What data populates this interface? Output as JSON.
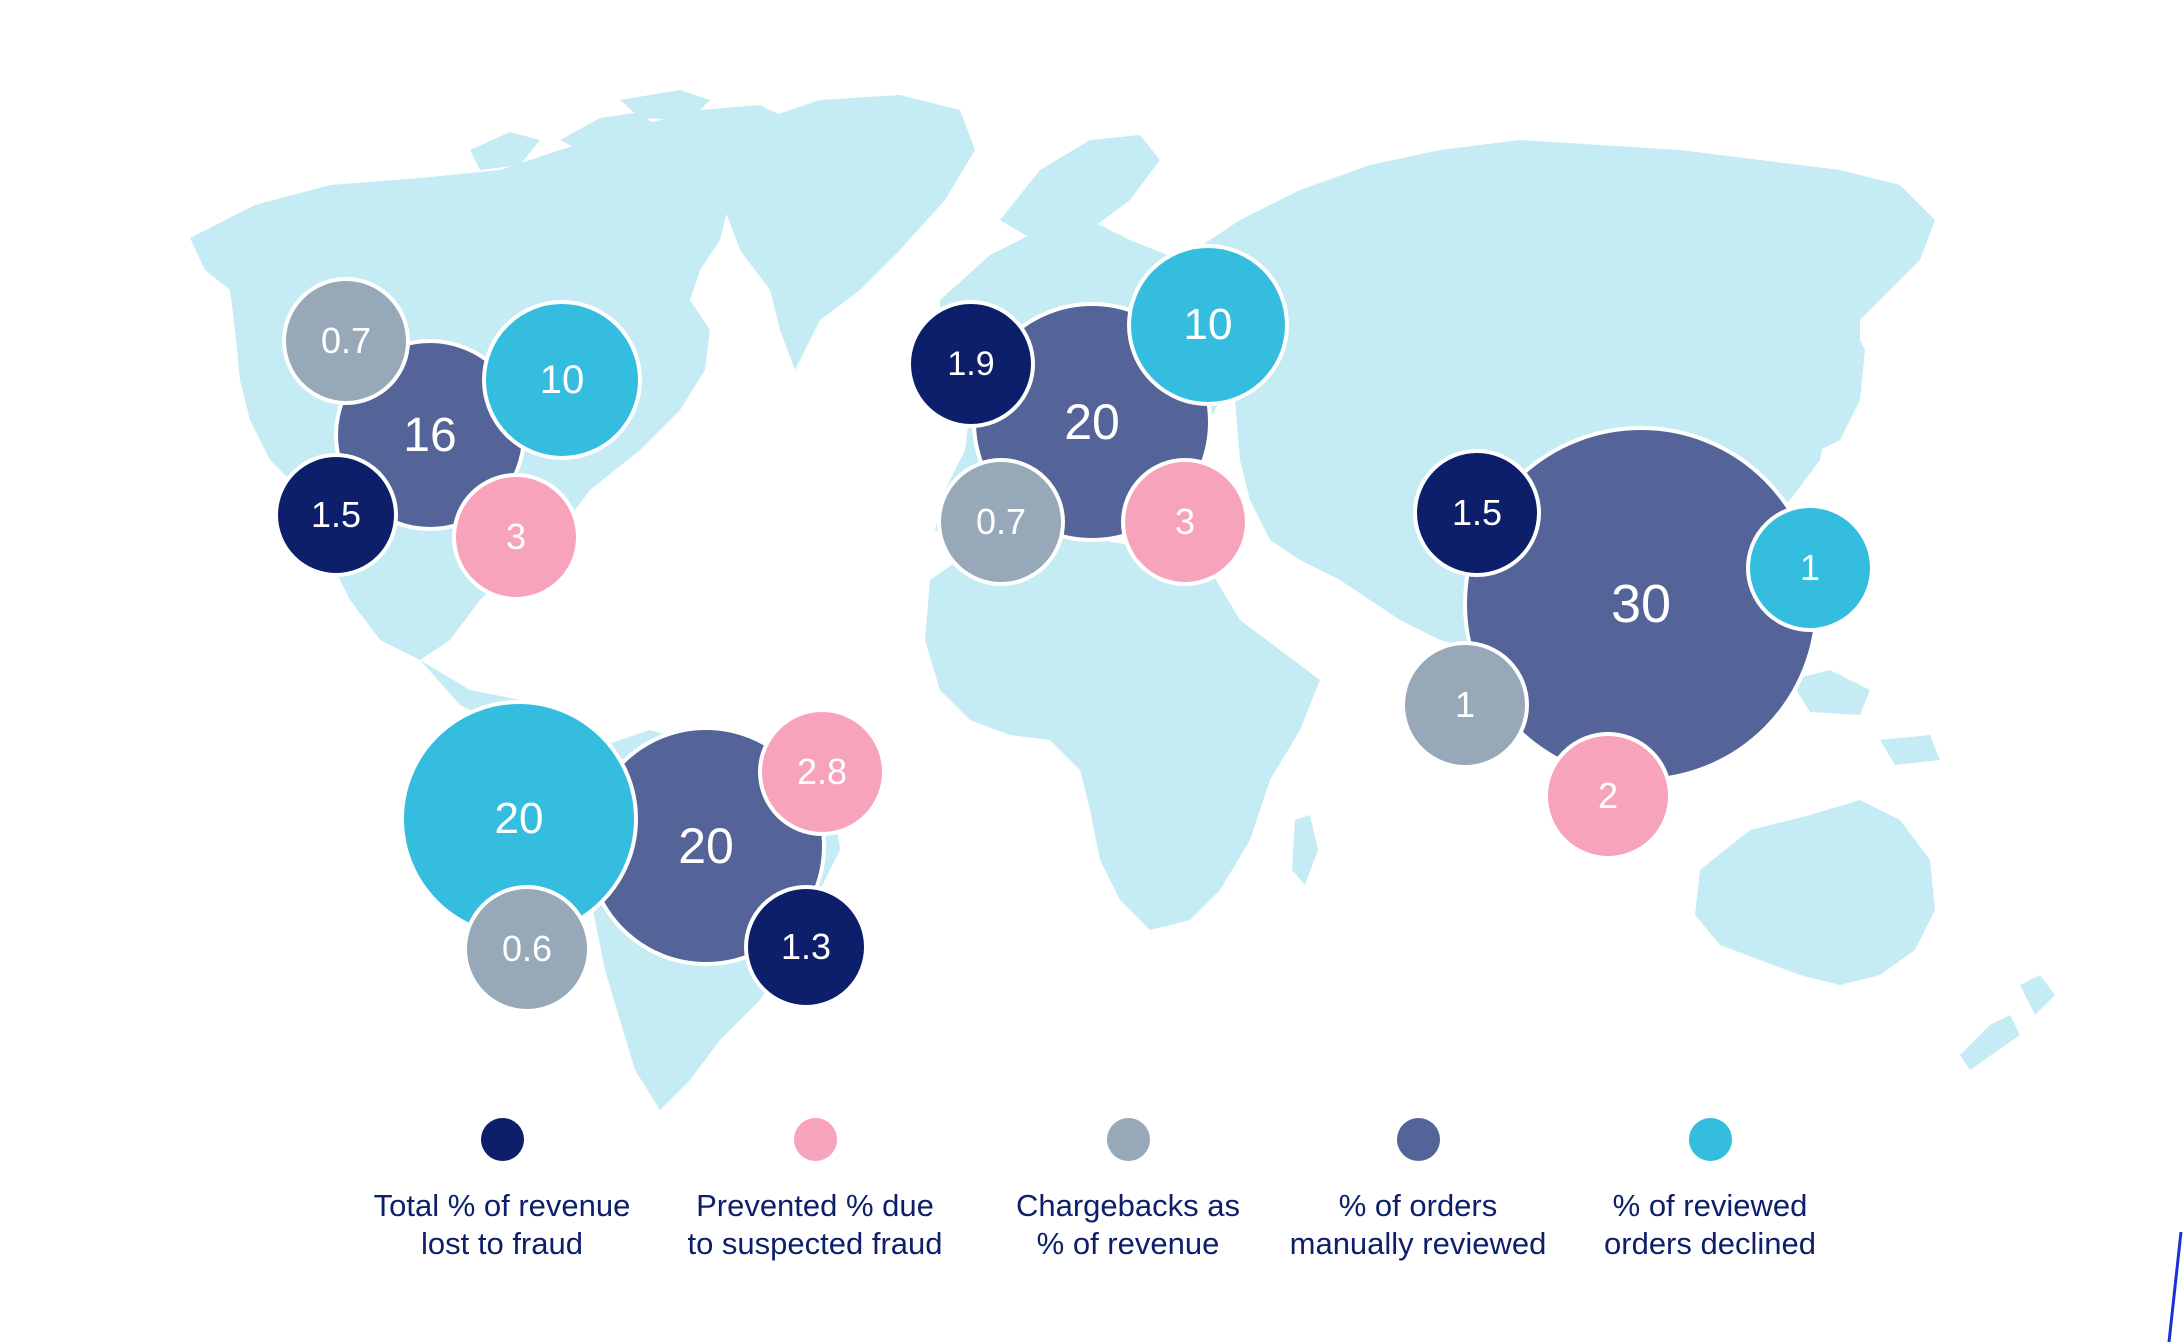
{
  "colors": {
    "land": "#c5ebf5",
    "revenue_lost": "#0d1f6b",
    "prevented": "#f7a3bc",
    "chargebacks": "#97a9b9",
    "reviewed": "#546398",
    "declined": "#35bde0",
    "legend_text": "#0d1f6b"
  },
  "legend": [
    {
      "key": "revenue_lost",
      "label": "Total % of revenue\nlost to fraud"
    },
    {
      "key": "prevented",
      "label": "Prevented % due\nto suspected fraud"
    },
    {
      "key": "chargebacks",
      "label": "Chargebacks as\n% of revenue"
    },
    {
      "key": "reviewed",
      "label": "% of orders\nmanually reviewed"
    },
    {
      "key": "declined",
      "label": "% of reviewed\norders declined"
    }
  ],
  "regions": [
    {
      "id": "north-america",
      "values": {
        "chargebacks": "0.7",
        "declined": "10",
        "reviewed": "16",
        "revenue_lost": "1.5",
        "prevented": "3"
      }
    },
    {
      "id": "europe",
      "values": {
        "revenue_lost": "1.9",
        "declined": "10",
        "reviewed": "20",
        "chargebacks": "0.7",
        "prevented": "3"
      }
    },
    {
      "id": "asia-pacific",
      "values": {
        "revenue_lost": "1.5",
        "reviewed": "30",
        "declined": "1",
        "chargebacks": "1",
        "prevented": "2"
      }
    },
    {
      "id": "latin-america",
      "values": {
        "declined": "20",
        "reviewed": "20",
        "prevented": "2.8",
        "chargebacks": "0.6",
        "revenue_lost": "1.3"
      }
    }
  ]
}
